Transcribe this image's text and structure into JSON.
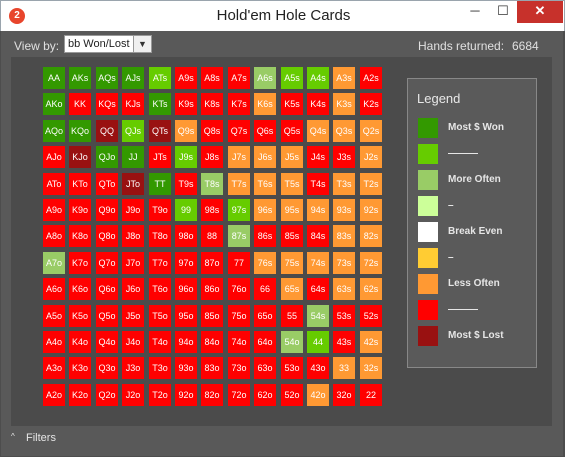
{
  "window": {
    "title": "Hold'em Hole Cards",
    "app_icon": "2",
    "controls": {
      "minimize": "─",
      "maximize": "☐",
      "close": "✕"
    }
  },
  "toolbar": {
    "view_by_label": "View by:",
    "view_by_value": "bb Won/Lost",
    "hands_returned_label": "Hands returned:",
    "hands_returned_value": "6684"
  },
  "colors": {
    "dg": "#339900",
    "g": "#66cc00",
    "lg": "#99cc66",
    "pg": "#ccff99",
    "w": "#ffffff",
    "y": "#ffcc33",
    "o": "#ff9933",
    "r": "#ff0000",
    "dr": "#991111"
  },
  "grid": {
    "rows": [
      {
        "labels": [
          "AA",
          "AKs",
          "AQs",
          "AJs",
          "ATs",
          "A9s",
          "A8s",
          "A7s",
          "A6s",
          "A5s",
          "A4s",
          "A3s",
          "A2s"
        ],
        "colors": [
          "dg",
          "dg",
          "dg",
          "dg",
          "g",
          "r",
          "r",
          "r",
          "lg",
          "g",
          "g",
          "o",
          "r"
        ]
      },
      {
        "labels": [
          "AKo",
          "KK",
          "KQs",
          "KJs",
          "KTs",
          "K9s",
          "K8s",
          "K7s",
          "K6s",
          "K5s",
          "K4s",
          "K3s",
          "K2s"
        ],
        "colors": [
          "dg",
          "r",
          "r",
          "r",
          "dg",
          "r",
          "r",
          "r",
          "o",
          "r",
          "r",
          "o",
          "r"
        ]
      },
      {
        "labels": [
          "AQo",
          "KQo",
          "QQ",
          "QJs",
          "QTs",
          "Q9s",
          "Q8s",
          "Q7s",
          "Q6s",
          "Q5s",
          "Q4s",
          "Q3s",
          "Q2s"
        ],
        "colors": [
          "dg",
          "dg",
          "dr",
          "g",
          "dr",
          "o",
          "r",
          "r",
          "r",
          "r",
          "o",
          "o",
          "o"
        ]
      },
      {
        "labels": [
          "AJo",
          "KJo",
          "QJo",
          "JJ",
          "JTs",
          "J9s",
          "J8s",
          "J7s",
          "J6s",
          "J5s",
          "J4s",
          "J3s",
          "J2s"
        ],
        "colors": [
          "r",
          "dr",
          "dg",
          "dg",
          "r",
          "g",
          "r",
          "o",
          "o",
          "o",
          "r",
          "r",
          "o"
        ]
      },
      {
        "labels": [
          "ATo",
          "KTo",
          "QTo",
          "JTo",
          "TT",
          "T9s",
          "T8s",
          "T7s",
          "T6s",
          "T5s",
          "T4s",
          "T3s",
          "T2s"
        ],
        "colors": [
          "r",
          "r",
          "r",
          "dr",
          "dg",
          "r",
          "lg",
          "o",
          "o",
          "o",
          "r",
          "o",
          "o"
        ]
      },
      {
        "labels": [
          "A9o",
          "K9o",
          "Q9o",
          "J9o",
          "T9o",
          "99",
          "98s",
          "97s",
          "96s",
          "95s",
          "94s",
          "93s",
          "92s"
        ],
        "colors": [
          "r",
          "r",
          "r",
          "r",
          "r",
          "g",
          "r",
          "g",
          "o",
          "o",
          "o",
          "o",
          "o"
        ]
      },
      {
        "labels": [
          "A8o",
          "K8o",
          "Q8o",
          "J8o",
          "T8o",
          "98o",
          "88",
          "87s",
          "86s",
          "85s",
          "84s",
          "83s",
          "82s"
        ],
        "colors": [
          "r",
          "r",
          "r",
          "r",
          "r",
          "r",
          "r",
          "lg",
          "r",
          "r",
          "r",
          "o",
          "o"
        ]
      },
      {
        "labels": [
          "A7o",
          "K7o",
          "Q7o",
          "J7o",
          "T7o",
          "97o",
          "87o",
          "77",
          "76s",
          "75s",
          "74s",
          "73s",
          "72s"
        ],
        "colors": [
          "lg",
          "r",
          "r",
          "r",
          "r",
          "r",
          "r",
          "r",
          "o",
          "o",
          "o",
          "o",
          "o"
        ]
      },
      {
        "labels": [
          "A6o",
          "K6o",
          "Q6o",
          "J6o",
          "T6o",
          "96o",
          "86o",
          "76o",
          "66",
          "65s",
          "64s",
          "63s",
          "62s"
        ],
        "colors": [
          "r",
          "r",
          "r",
          "r",
          "r",
          "r",
          "r",
          "r",
          "r",
          "o",
          "r",
          "o",
          "o"
        ]
      },
      {
        "labels": [
          "A5o",
          "K5o",
          "Q5o",
          "J5o",
          "T5o",
          "95o",
          "85o",
          "75o",
          "65o",
          "55",
          "54s",
          "53s",
          "52s"
        ],
        "colors": [
          "r",
          "r",
          "r",
          "r",
          "r",
          "r",
          "r",
          "r",
          "r",
          "r",
          "lg",
          "r",
          "r"
        ]
      },
      {
        "labels": [
          "A4o",
          "K4o",
          "Q4o",
          "J4o",
          "T4o",
          "94o",
          "84o",
          "74o",
          "64o",
          "54o",
          "44",
          "43s",
          "42s"
        ],
        "colors": [
          "r",
          "r",
          "r",
          "r",
          "r",
          "r",
          "r",
          "r",
          "r",
          "lg",
          "g",
          "r",
          "o"
        ]
      },
      {
        "labels": [
          "A3o",
          "K3o",
          "Q3o",
          "J3o",
          "T3o",
          "93o",
          "83o",
          "73o",
          "63o",
          "53o",
          "43o",
          "33",
          "32s"
        ],
        "colors": [
          "r",
          "r",
          "r",
          "r",
          "r",
          "r",
          "r",
          "r",
          "r",
          "r",
          "r",
          "o",
          "o"
        ]
      },
      {
        "labels": [
          "A2o",
          "K2o",
          "Q2o",
          "J2o",
          "T2o",
          "92o",
          "82o",
          "72o",
          "62o",
          "52o",
          "42o",
          "32o",
          "22"
        ],
        "colors": [
          "r",
          "r",
          "r",
          "r",
          "r",
          "r",
          "r",
          "r",
          "r",
          "r",
          "o",
          "r",
          "r"
        ]
      }
    ]
  },
  "legend": {
    "title": "Legend",
    "items": [
      {
        "label": "Most $ Won",
        "color": "dg"
      },
      {
        "label": "———",
        "color": "g"
      },
      {
        "label": "More Often",
        "color": "lg"
      },
      {
        "label": "–",
        "color": "pg"
      },
      {
        "label": "Break Even",
        "color": "w"
      },
      {
        "label": "–",
        "color": "y"
      },
      {
        "label": "Less Often",
        "color": "o"
      },
      {
        "label": "———",
        "color": "r"
      },
      {
        "label": "Most $ Lost",
        "color": "dr"
      }
    ]
  },
  "footer": {
    "filters_label": "Filters",
    "filters_caret": "^"
  }
}
